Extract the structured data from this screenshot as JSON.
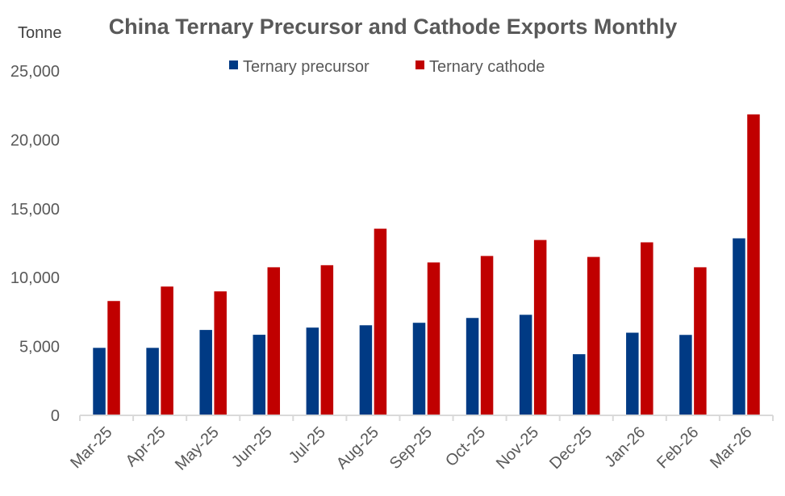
{
  "chart_data": {
    "type": "bar",
    "title": "China Ternary Precursor and Cathode Exports Monthly",
    "ylabel": "Tonne",
    "xlabel": "",
    "ylim": [
      0,
      25000
    ],
    "yticks": [
      "0",
      "5,000",
      "10,000",
      "15,000",
      "20,000",
      "25,000"
    ],
    "ytick_values": [
      0,
      5000,
      10000,
      15000,
      20000,
      25000
    ],
    "grid": false,
    "legend_placement": "top-center",
    "categories": [
      "Mar-25",
      "Apr-25",
      "May-25",
      "Jun-25",
      "Jul-25",
      "Aug-25",
      "Sep-25",
      "Oct-25",
      "Nov-25",
      "Dec-25",
      "Jan-26",
      "Feb-26",
      "Mar-26"
    ],
    "series": [
      {
        "name": "Ternary precursor",
        "color": "#003A84",
        "values": [
          4900,
          4900,
          6200,
          5850,
          6370,
          6540,
          6720,
          7070,
          7300,
          4440,
          6000,
          5840,
          12850
        ]
      },
      {
        "name": "Ternary cathode",
        "color": "#C00000",
        "values": [
          8300,
          9350,
          9000,
          10750,
          10900,
          13550,
          11100,
          11570,
          12730,
          11500,
          12560,
          10750,
          21850
        ]
      }
    ]
  }
}
